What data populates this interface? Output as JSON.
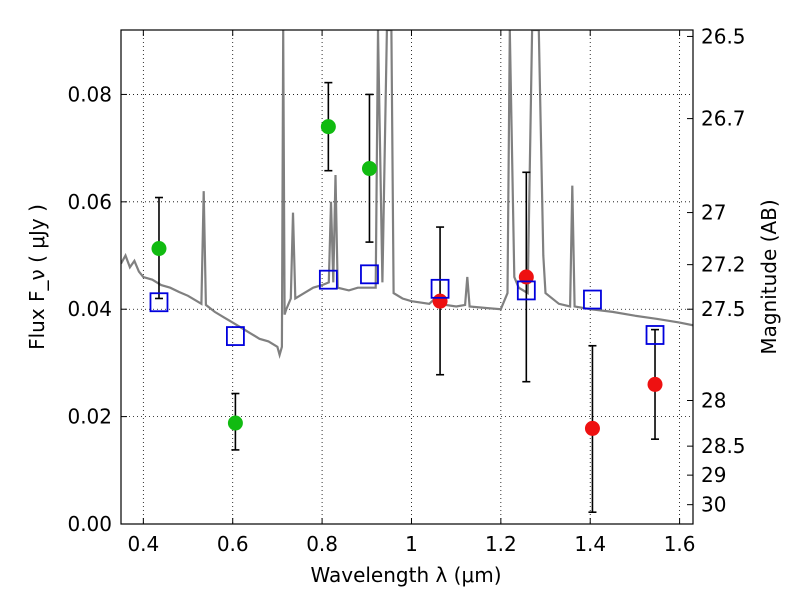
{
  "chart_data": {
    "type": "scatter",
    "xlabel": "Wavelength  λ (μm)",
    "ylabel": "Flux  F_ν  ( μJy )",
    "ylabel_right": "Magnitude (AB)",
    "xlim": [
      0.35,
      1.63
    ],
    "ylim": [
      0.0,
      0.092
    ],
    "grid": true,
    "x_ticks": [
      0.4,
      0.6,
      0.8,
      1.0,
      1.2,
      1.4,
      1.6
    ],
    "x_tick_labels": [
      "0.4",
      "0.6",
      "0.8",
      "1",
      "1.2",
      "1.4",
      "1.6"
    ],
    "y_ticks": [
      0.0,
      0.02,
      0.04,
      0.06,
      0.08
    ],
    "y_tick_labels": [
      "0.00",
      "0.02",
      "0.04",
      "0.06",
      "0.08"
    ],
    "right_ticks": [
      {
        "flux": 0.0908,
        "label": "26.5"
      },
      {
        "flux": 0.0755,
        "label": "26.7"
      },
      {
        "flux": 0.058,
        "label": "27"
      },
      {
        "flux": 0.0483,
        "label": "27.2"
      },
      {
        "flux": 0.04,
        "label": "27.5"
      },
      {
        "flux": 0.023,
        "label": "28"
      },
      {
        "flux": 0.0145,
        "label": "28.5"
      },
      {
        "flux": 0.0091,
        "label": "29"
      },
      {
        "flux": 0.0036,
        "label": "30"
      }
    ],
    "series": [
      {
        "marker": "circle",
        "color": "#11bb11",
        "points": [
          {
            "x": 0.435,
            "y": 0.0513,
            "ylo": 0.042,
            "yhi": 0.0608
          },
          {
            "x": 0.606,
            "y": 0.0188,
            "ylo": 0.0138,
            "yhi": 0.0243
          },
          {
            "x": 0.814,
            "y": 0.074,
            "ylo": 0.0658,
            "yhi": 0.0822
          },
          {
            "x": 0.906,
            "y": 0.0662,
            "ylo": 0.0525,
            "yhi": 0.08
          }
        ]
      },
      {
        "marker": "circle",
        "color": "#ee1111",
        "points": [
          {
            "x": 1.064,
            "y": 0.0415,
            "ylo": 0.0278,
            "yhi": 0.0553
          },
          {
            "x": 1.257,
            "y": 0.046,
            "ylo": 0.0265,
            "yhi": 0.0655
          },
          {
            "x": 1.405,
            "y": 0.0178,
            "ylo": 0.0022,
            "yhi": 0.0332
          },
          {
            "x": 1.545,
            "y": 0.026,
            "ylo": 0.0158,
            "yhi": 0.0362
          }
        ]
      },
      {
        "marker": "open-square",
        "color": "#0000dd",
        "points": [
          {
            "x": 0.435,
            "y": 0.0413
          },
          {
            "x": 0.606,
            "y": 0.035
          },
          {
            "x": 0.814,
            "y": 0.0455
          },
          {
            "x": 0.906,
            "y": 0.0465
          },
          {
            "x": 1.064,
            "y": 0.0438
          },
          {
            "x": 1.257,
            "y": 0.0435
          },
          {
            "x": 1.405,
            "y": 0.0418
          },
          {
            "x": 1.545,
            "y": 0.0352
          }
        ]
      }
    ],
    "model_spectrum": {
      "color": "#808080",
      "points": [
        [
          0.35,
          0.0485
        ],
        [
          0.36,
          0.05
        ],
        [
          0.37,
          0.0478
        ],
        [
          0.38,
          0.049
        ],
        [
          0.39,
          0.047
        ],
        [
          0.4,
          0.046
        ],
        [
          0.42,
          0.0455
        ],
        [
          0.44,
          0.0445
        ],
        [
          0.46,
          0.044
        ],
        [
          0.48,
          0.0432
        ],
        [
          0.5,
          0.0425
        ],
        [
          0.52,
          0.0415
        ],
        [
          0.53,
          0.041
        ],
        [
          0.535,
          0.062
        ],
        [
          0.54,
          0.0408
        ],
        [
          0.56,
          0.0395
        ],
        [
          0.58,
          0.0385
        ],
        [
          0.6,
          0.0375
        ],
        [
          0.62,
          0.0365
        ],
        [
          0.64,
          0.0355
        ],
        [
          0.66,
          0.0345
        ],
        [
          0.68,
          0.034
        ],
        [
          0.7,
          0.033
        ],
        [
          0.705,
          0.0315
        ],
        [
          0.71,
          0.033
        ],
        [
          0.713,
          0.092
        ],
        [
          0.716,
          0.039
        ],
        [
          0.72,
          0.04
        ],
        [
          0.73,
          0.042
        ],
        [
          0.735,
          0.058
        ],
        [
          0.74,
          0.042
        ],
        [
          0.76,
          0.043
        ],
        [
          0.78,
          0.044
        ],
        [
          0.8,
          0.0445
        ],
        [
          0.815,
          0.045
        ],
        [
          0.82,
          0.06
        ],
        [
          0.825,
          0.045
        ],
        [
          0.83,
          0.065
        ],
        [
          0.835,
          0.044
        ],
        [
          0.86,
          0.0435
        ],
        [
          0.88,
          0.044
        ],
        [
          0.9,
          0.044
        ],
        [
          0.92,
          0.044
        ],
        [
          0.925,
          0.092
        ],
        [
          0.935,
          0.045
        ],
        [
          0.945,
          0.092
        ],
        [
          0.955,
          0.092
        ],
        [
          0.96,
          0.043
        ],
        [
          0.98,
          0.042
        ],
        [
          1.0,
          0.0415
        ],
        [
          1.04,
          0.041
        ],
        [
          1.05,
          0.0418
        ],
        [
          1.06,
          0.041
        ],
        [
          1.1,
          0.0405
        ],
        [
          1.12,
          0.0408
        ],
        [
          1.125,
          0.046
        ],
        [
          1.13,
          0.0405
        ],
        [
          1.17,
          0.0402
        ],
        [
          1.2,
          0.04
        ],
        [
          1.215,
          0.043
        ],
        [
          1.22,
          0.092
        ],
        [
          1.23,
          0.046
        ],
        [
          1.24,
          0.044
        ],
        [
          1.26,
          0.043
        ],
        [
          1.27,
          0.092
        ],
        [
          1.285,
          0.092
        ],
        [
          1.295,
          0.05
        ],
        [
          1.3,
          0.043
        ],
        [
          1.33,
          0.041
        ],
        [
          1.355,
          0.0405
        ],
        [
          1.36,
          0.063
        ],
        [
          1.365,
          0.0405
        ],
        [
          1.4,
          0.04
        ],
        [
          1.45,
          0.0395
        ],
        [
          1.5,
          0.0388
        ],
        [
          1.55,
          0.0382
        ],
        [
          1.6,
          0.0375
        ],
        [
          1.63,
          0.037
        ]
      ]
    }
  }
}
